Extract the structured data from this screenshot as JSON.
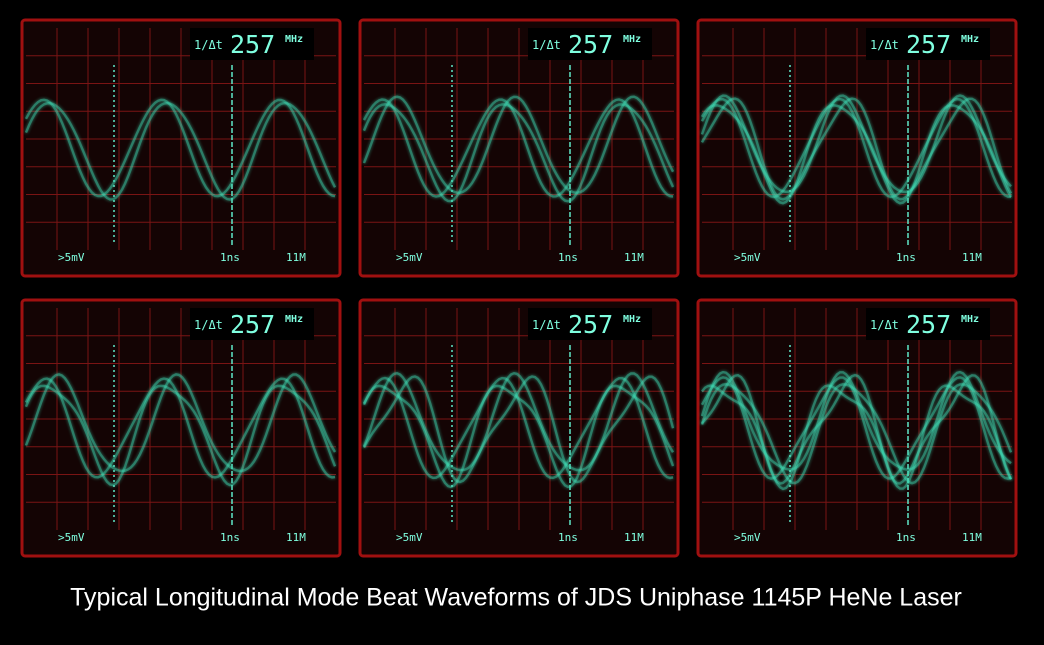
{
  "panels": [
    {
      "readout_label": "1/Δt",
      "readout_value": "257",
      "readout_unit": "MHz",
      "volts": ">5mV",
      "timebase": "1ns",
      "memory": "11M"
    },
    {
      "readout_label": "1/Δt",
      "readout_value": "257",
      "readout_unit": "MHz",
      "volts": ">5mV",
      "timebase": "1ns",
      "memory": "11M"
    },
    {
      "readout_label": "1/Δt",
      "readout_value": "257",
      "readout_unit": "MHz",
      "volts": ">5mV",
      "timebase": "1ns",
      "memory": "11M"
    },
    {
      "readout_label": "1/Δt",
      "readout_value": "257",
      "readout_unit": "MHz",
      "volts": ">5mV",
      "timebase": "1ns",
      "memory": "11M"
    },
    {
      "readout_label": "1/Δt",
      "readout_value": "257",
      "readout_unit": "MHz",
      "volts": ">5mV",
      "timebase": "1ns",
      "memory": "11M"
    },
    {
      "readout_label": "1/Δt",
      "readout_value": "257",
      "readout_unit": "MHz",
      "volts": ">5mV",
      "timebase": "1ns",
      "memory": "11M"
    }
  ],
  "caption": "Typical Longitudinal Mode Beat Waveforms of JDS Uniphase 1145P HeNe Laser"
}
